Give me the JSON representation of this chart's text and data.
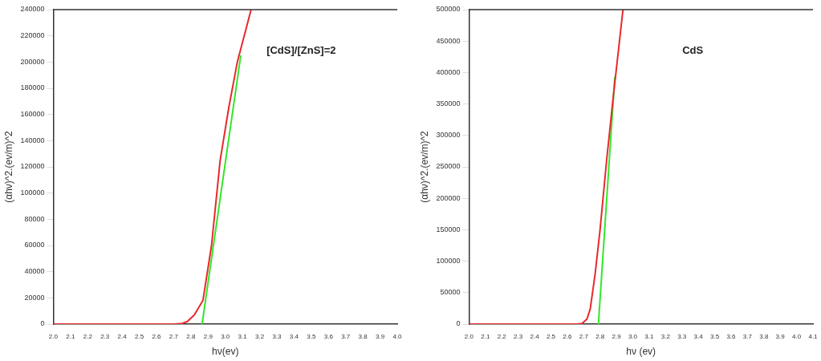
{
  "chart_data": [
    {
      "type": "line",
      "xlabel": "hν(ev)",
      "ylabel": "(αhν)^2.(ev/m)^2",
      "annotations": [
        {
          "text": "[CdS]/[ZnS]=2"
        }
      ],
      "xlim": [
        2.0,
        4.0
      ],
      "xticks": [
        {
          "value": 2,
          "label": "2.0"
        },
        2.1,
        2.2,
        2.3,
        2.4,
        2.5,
        2.6,
        2.7,
        2.8,
        2.9,
        {
          "value": 3,
          "label": "3.0"
        },
        3.1,
        3.2,
        3.3,
        3.4,
        3.5,
        3.6,
        3.7,
        3.8,
        3.9,
        {
          "value": 4,
          "label": "4.0"
        }
      ],
      "ylim": [
        0,
        240000
      ],
      "yticks": [
        0,
        20000,
        40000,
        60000,
        80000,
        100000,
        120000,
        140000,
        160000,
        180000,
        200000,
        220000,
        240000
      ],
      "grid": false,
      "legend": false,
      "marker": "none",
      "series": [
        {
          "color": "#e8292b",
          "x": [
            2.0,
            2.3,
            2.6,
            2.7,
            2.75,
            2.78,
            2.82,
            2.87,
            2.92,
            2.97,
            3.02,
            3.07,
            3.11,
            3.15
          ],
          "values": [
            0,
            0,
            0,
            0,
            500,
            2000,
            7000,
            18000,
            60000,
            124800,
            165000,
            200000,
            220000,
            240000
          ]
        },
        {
          "color": "#33e62b",
          "x": [
            2.865,
            3.09
          ],
          "values": [
            0,
            205000
          ]
        }
      ]
    },
    {
      "type": "line",
      "xlabel": "hν (ev)",
      "ylabel": "(αhν)^2.(ev/m)^2",
      "annotations": [
        {
          "text": "CdS"
        }
      ],
      "xlim": [
        2.0,
        4.1
      ],
      "xticks": [
        {
          "value": 2,
          "label": "2.0"
        },
        2.1,
        2.2,
        2.3,
        2.4,
        2.5,
        2.6,
        2.7,
        2.8,
        2.9,
        {
          "value": 3,
          "label": "3.0"
        },
        3.1,
        3.2,
        3.3,
        3.4,
        3.5,
        3.6,
        3.7,
        3.8,
        3.9,
        {
          "value": 4,
          "label": "4.0"
        },
        4.1
      ],
      "ylim": [
        0,
        500000
      ],
      "yticks": [
        0,
        50000,
        100000,
        150000,
        200000,
        250000,
        300000,
        350000,
        400000,
        450000,
        500000
      ],
      "grid": false,
      "legend": false,
      "marker": "none",
      "series": [
        {
          "color": "#e8292b",
          "x": [
            2.0,
            2.3,
            2.6,
            2.66,
            2.69,
            2.72,
            2.74,
            2.77,
            2.8,
            2.84,
            2.88,
            2.91,
            2.94
          ],
          "values": [
            0,
            0,
            0,
            0,
            1000,
            8000,
            24000,
            80000,
            150000,
            260000,
            360000,
            430000,
            500000
          ]
        },
        {
          "color": "#33e62b",
          "x": [
            2.79,
            2.89
          ],
          "values": [
            0,
            393000
          ]
        }
      ]
    }
  ]
}
